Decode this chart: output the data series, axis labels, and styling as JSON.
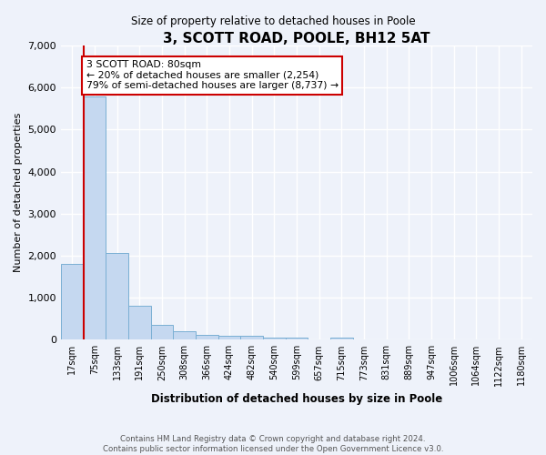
{
  "title": "3, SCOTT ROAD, POOLE, BH12 5AT",
  "subtitle": "Size of property relative to detached houses in Poole",
  "xlabel": "Distribution of detached houses by size in Poole",
  "ylabel": "Number of detached properties",
  "bar_labels": [
    "17sqm",
    "75sqm",
    "133sqm",
    "191sqm",
    "250sqm",
    "308sqm",
    "366sqm",
    "424sqm",
    "482sqm",
    "540sqm",
    "599sqm",
    "657sqm",
    "715sqm",
    "773sqm",
    "831sqm",
    "889sqm",
    "947sqm",
    "1006sqm",
    "1064sqm",
    "1122sqm",
    "1180sqm"
  ],
  "bar_values": [
    1800,
    5780,
    2060,
    810,
    350,
    205,
    120,
    95,
    95,
    55,
    55,
    0,
    55,
    0,
    0,
    0,
    0,
    0,
    0,
    0,
    0
  ],
  "bar_color": "#c5d8f0",
  "bar_edge_color": "#7aafd4",
  "ylim": [
    0,
    7000
  ],
  "yticks": [
    0,
    1000,
    2000,
    3000,
    4000,
    5000,
    6000,
    7000
  ],
  "red_line_x": 0.5,
  "annotation_text": "3 SCOTT ROAD: 80sqm\n← 20% of detached houses are smaller (2,254)\n79% of semi-detached houses are larger (8,737) →",
  "annotation_box_facecolor": "#ffffff",
  "annotation_box_edgecolor": "#cc0000",
  "bg_color": "#eef2fa",
  "grid_color": "#ffffff",
  "footer_text": "Contains HM Land Registry data © Crown copyright and database right 2024.\nContains public sector information licensed under the Open Government Licence v3.0."
}
